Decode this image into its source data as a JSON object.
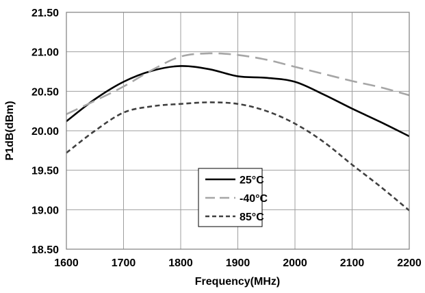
{
  "chart_data": {
    "type": "line",
    "xlabel": "Frequency(MHz)",
    "ylabel": "P1dB(dBm)",
    "xlim": [
      1600,
      2200
    ],
    "ylim": [
      18.5,
      21.5
    ],
    "x_ticks": [
      "1600",
      "1700",
      "1800",
      "1900",
      "2000",
      "2100",
      "2200"
    ],
    "y_ticks": [
      "18.50",
      "19.00",
      "19.50",
      "20.00",
      "20.50",
      "21.00",
      "21.50"
    ],
    "grid": true,
    "legend_position": "center",
    "series": [
      {
        "name": "25°C",
        "color": "#000000",
        "dash": "solid",
        "points": [
          [
            1600,
            20.12
          ],
          [
            1650,
            20.4
          ],
          [
            1700,
            20.62
          ],
          [
            1750,
            20.76
          ],
          [
            1800,
            20.82
          ],
          [
            1850,
            20.78
          ],
          [
            1900,
            20.69
          ],
          [
            1950,
            20.67
          ],
          [
            2000,
            20.62
          ],
          [
            2050,
            20.46
          ],
          [
            2100,
            20.28
          ],
          [
            2150,
            20.11
          ],
          [
            2200,
            19.93
          ]
        ]
      },
      {
        "name": "-40°C",
        "color": "#a6a6a6",
        "dash": "dashed",
        "points": [
          [
            1600,
            20.21
          ],
          [
            1650,
            20.38
          ],
          [
            1700,
            20.56
          ],
          [
            1750,
            20.77
          ],
          [
            1800,
            20.94
          ],
          [
            1850,
            20.98
          ],
          [
            1900,
            20.96
          ],
          [
            1950,
            20.9
          ],
          [
            2000,
            20.81
          ],
          [
            2050,
            20.72
          ],
          [
            2100,
            20.63
          ],
          [
            2150,
            20.55
          ],
          [
            2200,
            20.45
          ]
        ]
      },
      {
        "name": "85°C",
        "color": "#404040",
        "dash": "dotted",
        "points": [
          [
            1600,
            19.72
          ],
          [
            1650,
            20.0
          ],
          [
            1700,
            20.23
          ],
          [
            1750,
            20.31
          ],
          [
            1800,
            20.34
          ],
          [
            1850,
            20.36
          ],
          [
            1900,
            20.34
          ],
          [
            1950,
            20.25
          ],
          [
            2000,
            20.09
          ],
          [
            2050,
            19.86
          ],
          [
            2100,
            19.57
          ],
          [
            2150,
            19.29
          ],
          [
            2200,
            18.99
          ]
        ]
      }
    ]
  }
}
